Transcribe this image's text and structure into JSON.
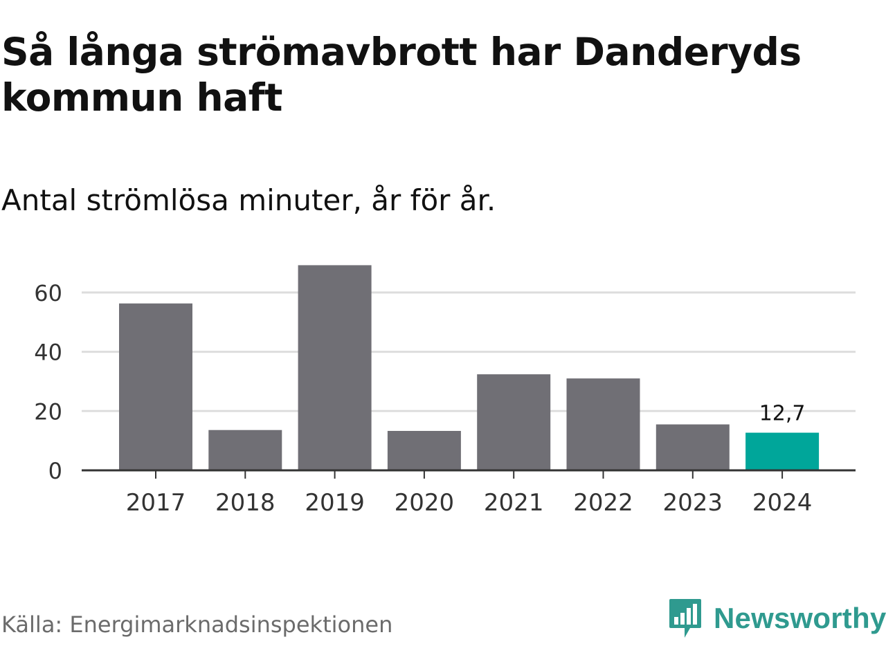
{
  "header": {
    "title": "Så långa strömavbrott har Danderyds kommun haft",
    "subtitle": "Antal strömlösa minuter, år för år."
  },
  "footer": {
    "source": "Källa: Energimarknadsinspektionen",
    "brand": "Newsworthy"
  },
  "colors": {
    "bar": "#706f75",
    "highlight": "#00a69a",
    "grid": "#dddddd",
    "axis": "#333333",
    "text": "#333333",
    "brand": "#2f9a8f"
  },
  "icons": {
    "brand_logo": "bar-chart-speech-bubble-icon"
  },
  "chart_data": {
    "type": "bar",
    "categories": [
      "2017",
      "2018",
      "2019",
      "2020",
      "2021",
      "2022",
      "2023",
      "2024"
    ],
    "values": [
      56.3,
      13.6,
      69.2,
      13.3,
      32.4,
      31.0,
      15.5,
      12.7
    ],
    "highlight_index": 7,
    "data_labels": [
      {
        "index": 7,
        "text": "12,7"
      }
    ],
    "yticks": [
      0,
      20,
      40,
      60
    ],
    "ylim": [
      0,
      70
    ],
    "grid": true,
    "legend": "none"
  }
}
